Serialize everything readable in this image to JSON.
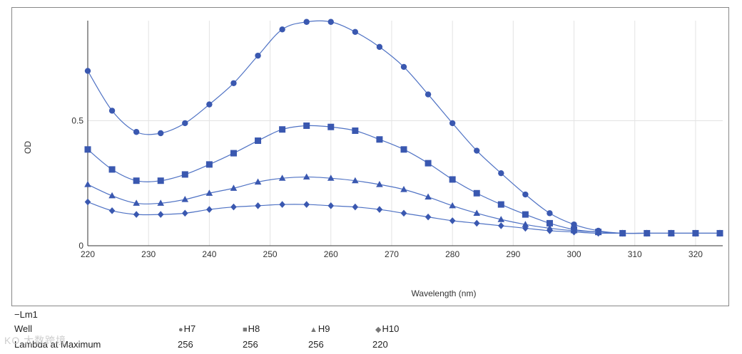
{
  "chart_data": {
    "type": "line",
    "xlabel": "Wavelength (nm)",
    "ylabel": "OD",
    "xlim": [
      220,
      324
    ],
    "ylim": [
      0,
      0.9
    ],
    "x_ticks": [
      220,
      230,
      240,
      250,
      260,
      270,
      280,
      290,
      300,
      310,
      320
    ],
    "y_ticks": [
      0,
      0.5
    ],
    "y_tick_labels": [
      "0",
      "0.5"
    ],
    "grid": true,
    "line_color": "#4f72c4",
    "marker_color": "#3a58b0",
    "x": [
      220,
      224,
      228,
      232,
      236,
      240,
      244,
      248,
      252,
      256,
      260,
      264,
      268,
      272,
      276,
      280,
      284,
      288,
      292,
      296,
      300,
      304,
      308,
      312,
      316,
      320,
      324
    ],
    "series": [
      {
        "name": "H7",
        "marker": "circle",
        "values": [
          0.699,
          0.54,
          0.455,
          0.45,
          0.49,
          0.565,
          0.65,
          0.76,
          0.865,
          0.895,
          0.895,
          0.855,
          0.795,
          0.715,
          0.605,
          0.49,
          0.38,
          0.29,
          0.205,
          0.13,
          0.085,
          0.06,
          0.05,
          0.05,
          0.05,
          0.05,
          0.05
        ]
      },
      {
        "name": "H8",
        "marker": "square",
        "values": [
          0.385,
          0.305,
          0.26,
          0.26,
          0.285,
          0.325,
          0.37,
          0.42,
          0.465,
          0.48,
          0.475,
          0.46,
          0.425,
          0.385,
          0.33,
          0.265,
          0.21,
          0.165,
          0.125,
          0.09,
          0.065,
          0.055,
          0.05,
          0.05,
          0.05,
          0.05,
          0.05
        ]
      },
      {
        "name": "H9",
        "marker": "triangle",
        "values": [
          0.245,
          0.2,
          0.17,
          0.17,
          0.185,
          0.21,
          0.23,
          0.255,
          0.27,
          0.275,
          0.27,
          0.26,
          0.245,
          0.225,
          0.195,
          0.16,
          0.13,
          0.105,
          0.085,
          0.07,
          0.06,
          0.055,
          0.05,
          0.05,
          0.05,
          0.05,
          0.05
        ]
      },
      {
        "name": "H10",
        "marker": "diamond",
        "values": [
          0.175,
          0.14,
          0.125,
          0.125,
          0.13,
          0.145,
          0.155,
          0.16,
          0.165,
          0.165,
          0.16,
          0.155,
          0.145,
          0.13,
          0.115,
          0.1,
          0.09,
          0.08,
          0.07,
          0.06,
          0.055,
          0.05,
          0.05,
          0.05,
          0.05,
          0.05,
          0.05
        ]
      }
    ]
  },
  "legend": {
    "series_tag": "−Lm1",
    "well_label": "Well",
    "lambda_label": "Lambda at Maximum",
    "wells": [
      {
        "glyph": "●",
        "name": "H7",
        "lambda": "256"
      },
      {
        "glyph": "■",
        "name": "H8",
        "lambda": "256"
      },
      {
        "glyph": "▲",
        "name": "H9",
        "lambda": "256"
      },
      {
        "glyph": "◆",
        "name": "H10",
        "lambda": "220"
      }
    ]
  },
  "watermark": "KO 大数跨境"
}
